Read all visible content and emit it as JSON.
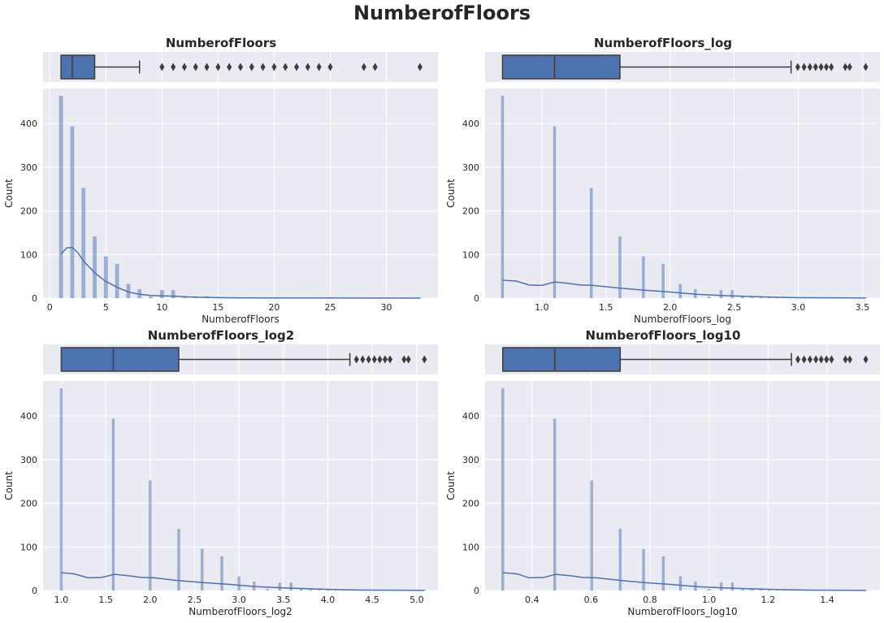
{
  "title": "NumberofFloors",
  "colors": {
    "background": "#eaeaf2",
    "grid": "#ffffff",
    "bar": "#4c72b0",
    "box_edge": "#3d3d3d",
    "text": "#262626"
  },
  "chart_data": [
    {
      "type": "histogram+boxplot",
      "title": "NumberofFloors",
      "xlabel": "NumberofFloors",
      "ylabel": "Count",
      "xlim": [
        -0.6,
        34.6
      ],
      "ylim": [
        0,
        480
      ],
      "xticks": [
        0,
        5,
        10,
        15,
        20,
        25,
        30
      ],
      "xtick_labels": [
        "0",
        "5",
        "10",
        "15",
        "20",
        "25",
        "30"
      ],
      "yticks": [
        0,
        100,
        200,
        300,
        400
      ],
      "bin_width": 0.32,
      "bars": [
        [
          1,
          463
        ],
        [
          2,
          393
        ],
        [
          3,
          252
        ],
        [
          4,
          141
        ],
        [
          5,
          95
        ],
        [
          6,
          78
        ],
        [
          7,
          32
        ],
        [
          8,
          20
        ],
        [
          9,
          3
        ],
        [
          10,
          18
        ],
        [
          11,
          18
        ],
        [
          12,
          4
        ],
        [
          13,
          3
        ],
        [
          14,
          4
        ],
        [
          15,
          2
        ],
        [
          16,
          1
        ],
        [
          17,
          1
        ],
        [
          18,
          1
        ],
        [
          19,
          1
        ],
        [
          20,
          1
        ],
        [
          21,
          1
        ],
        [
          22,
          1
        ],
        [
          23,
          1
        ],
        [
          24,
          1
        ],
        [
          25,
          1
        ],
        [
          28,
          1
        ],
        [
          29,
          1
        ],
        [
          33,
          1
        ]
      ],
      "kde": [
        [
          1,
          101
        ],
        [
          1.5,
          115
        ],
        [
          2,
          116
        ],
        [
          2.5,
          104
        ],
        [
          3,
          85
        ],
        [
          4,
          58
        ],
        [
          5,
          38
        ],
        [
          6,
          25
        ],
        [
          7,
          14
        ],
        [
          8,
          9
        ],
        [
          9,
          6
        ],
        [
          10,
          5
        ],
        [
          11,
          4.5
        ],
        [
          12,
          3
        ],
        [
          14,
          1.5
        ],
        [
          17,
          0.5
        ],
        [
          22,
          0.2
        ],
        [
          33,
          0
        ]
      ],
      "box": {
        "whisker_low": 1,
        "q1": 1,
        "median": 2,
        "q3": 4,
        "whisker_high": 8
      },
      "outliers": [
        10,
        11,
        12,
        13,
        14,
        15,
        16,
        17,
        18,
        19,
        20,
        21,
        22,
        23,
        24,
        25,
        28,
        29,
        33
      ]
    },
    {
      "type": "histogram+boxplot",
      "title": "NumberofFloors_log",
      "xlabel": "NumberofFloors_log",
      "ylabel": "Count",
      "xlim": [
        0.557,
        3.637
      ],
      "ylim": [
        0,
        480
      ],
      "xticks": [
        1.0,
        1.5,
        2.0,
        2.5,
        3.0,
        3.5
      ],
      "xtick_labels": [
        "1.0",
        "1.5",
        "2.0",
        "2.5",
        "3.0",
        "3.5"
      ],
      "yticks": [
        0,
        100,
        200,
        300,
        400
      ],
      "bin_width": 0.02,
      "bars": [
        [
          0.693,
          463
        ],
        [
          1.099,
          393
        ],
        [
          1.386,
          252
        ],
        [
          1.609,
          141
        ],
        [
          1.792,
          95
        ],
        [
          1.946,
          78
        ],
        [
          2.079,
          32
        ],
        [
          2.197,
          20
        ],
        [
          2.303,
          3
        ],
        [
          2.398,
          18
        ],
        [
          2.485,
          18
        ],
        [
          2.565,
          4
        ],
        [
          2.639,
          3
        ],
        [
          2.708,
          4
        ],
        [
          2.773,
          2
        ],
        [
          2.833,
          1
        ],
        [
          2.89,
          1
        ],
        [
          2.944,
          1
        ],
        [
          2.996,
          1
        ],
        [
          3.045,
          1
        ],
        [
          3.091,
          1
        ],
        [
          3.135,
          1
        ],
        [
          3.178,
          1
        ],
        [
          3.219,
          1
        ],
        [
          3.258,
          1
        ],
        [
          3.367,
          1
        ],
        [
          3.401,
          1
        ],
        [
          3.526,
          1
        ]
      ],
      "kde": [
        [
          0.693,
          41
        ],
        [
          0.8,
          39
        ],
        [
          0.9,
          30
        ],
        [
          1.0,
          29
        ],
        [
          1.1,
          37
        ],
        [
          1.2,
          34
        ],
        [
          1.3,
          30
        ],
        [
          1.4,
          29
        ],
        [
          1.6,
          23
        ],
        [
          1.8,
          18
        ],
        [
          2.0,
          14
        ],
        [
          2.2,
          9
        ],
        [
          2.4,
          6
        ],
        [
          2.6,
          4
        ],
        [
          2.8,
          2
        ],
        [
          3.0,
          1
        ],
        [
          3.2,
          0.8
        ],
        [
          3.526,
          0.2
        ]
      ],
      "box": {
        "whisker_low": 0.693,
        "q1": 0.693,
        "median": 1.099,
        "q3": 1.609,
        "whisker_high": 2.944
      },
      "outliers": [
        2.996,
        3.045,
        3.091,
        3.135,
        3.178,
        3.219,
        3.258,
        3.367,
        3.401,
        3.526
      ]
    },
    {
      "type": "histogram+boxplot",
      "title": "NumberofFloors_log2",
      "xlabel": "NumberofFloors_log2",
      "ylabel": "Count",
      "xlim": [
        0.795,
        5.239
      ],
      "ylim": [
        0,
        480
      ],
      "xticks": [
        1.0,
        1.5,
        2.0,
        2.5,
        3.0,
        3.5,
        4.0,
        4.5,
        5.0
      ],
      "xtick_labels": [
        "1.0",
        "1.5",
        "2.0",
        "2.5",
        "3.0",
        "3.5",
        "4.0",
        "4.5",
        "5.0"
      ],
      "yticks": [
        0,
        100,
        200,
        300,
        400
      ],
      "bin_width": 0.028,
      "bars": [
        [
          1.0,
          463
        ],
        [
          1.585,
          393
        ],
        [
          2.0,
          252
        ],
        [
          2.322,
          141
        ],
        [
          2.585,
          95
        ],
        [
          2.807,
          78
        ],
        [
          3.0,
          32
        ],
        [
          3.17,
          20
        ],
        [
          3.322,
          3
        ],
        [
          3.459,
          18
        ],
        [
          3.585,
          18
        ],
        [
          3.7,
          4
        ],
        [
          3.807,
          3
        ],
        [
          3.907,
          4
        ],
        [
          4.0,
          2
        ],
        [
          4.087,
          1
        ],
        [
          4.17,
          1
        ],
        [
          4.248,
          1
        ],
        [
          4.322,
          1
        ],
        [
          4.392,
          1
        ],
        [
          4.459,
          1
        ],
        [
          4.524,
          1
        ],
        [
          4.585,
          1
        ],
        [
          4.644,
          1
        ],
        [
          4.7,
          1
        ],
        [
          4.858,
          1
        ],
        [
          4.907,
          1
        ],
        [
          5.087,
          1
        ]
      ],
      "kde": [
        [
          1.0,
          41
        ],
        [
          1.15,
          38
        ],
        [
          1.3,
          29
        ],
        [
          1.45,
          30
        ],
        [
          1.6,
          37
        ],
        [
          1.75,
          34
        ],
        [
          1.9,
          30
        ],
        [
          2.05,
          29
        ],
        [
          2.3,
          23
        ],
        [
          2.6,
          18
        ],
        [
          2.9,
          14
        ],
        [
          3.2,
          9
        ],
        [
          3.5,
          6
        ],
        [
          3.8,
          4
        ],
        [
          4.1,
          2
        ],
        [
          4.4,
          1
        ],
        [
          4.7,
          0.8
        ],
        [
          5.087,
          0.2
        ]
      ],
      "box": {
        "whisker_low": 1.0,
        "q1": 1.0,
        "median": 1.585,
        "q3": 2.322,
        "whisker_high": 4.248
      },
      "outliers": [
        4.322,
        4.392,
        4.459,
        4.524,
        4.585,
        4.644,
        4.7,
        4.858,
        4.907,
        5.087
      ]
    },
    {
      "type": "histogram+boxplot",
      "title": "NumberofFloors_log10",
      "xlabel": "NumberofFloors_log10",
      "ylabel": "Count",
      "xlim": [
        0.241,
        1.579
      ],
      "ylim": [
        0,
        480
      ],
      "xticks": [
        0.4,
        0.6,
        0.8,
        1.0,
        1.2,
        1.4
      ],
      "xtick_labels": [
        "0.4",
        "0.6",
        "0.8",
        "1.0",
        "1.2",
        "1.4"
      ],
      "yticks": [
        0,
        100,
        200,
        300,
        400
      ],
      "bin_width": 0.0085,
      "bars": [
        [
          0.301,
          463
        ],
        [
          0.477,
          393
        ],
        [
          0.602,
          252
        ],
        [
          0.699,
          141
        ],
        [
          0.778,
          95
        ],
        [
          0.845,
          78
        ],
        [
          0.903,
          32
        ],
        [
          0.954,
          20
        ],
        [
          1.0,
          3
        ],
        [
          1.041,
          18
        ],
        [
          1.079,
          18
        ],
        [
          1.114,
          4
        ],
        [
          1.146,
          3
        ],
        [
          1.176,
          4
        ],
        [
          1.204,
          2
        ],
        [
          1.23,
          1
        ],
        [
          1.255,
          1
        ],
        [
          1.279,
          1
        ],
        [
          1.301,
          1
        ],
        [
          1.322,
          1
        ],
        [
          1.342,
          1
        ],
        [
          1.362,
          1
        ],
        [
          1.38,
          1
        ],
        [
          1.398,
          1
        ],
        [
          1.415,
          1
        ],
        [
          1.462,
          1
        ],
        [
          1.477,
          1
        ],
        [
          1.531,
          1
        ]
      ],
      "kde": [
        [
          0.301,
          41
        ],
        [
          0.35,
          38
        ],
        [
          0.39,
          29
        ],
        [
          0.44,
          30
        ],
        [
          0.48,
          37
        ],
        [
          0.53,
          34
        ],
        [
          0.57,
          30
        ],
        [
          0.62,
          29
        ],
        [
          0.7,
          23
        ],
        [
          0.78,
          18
        ],
        [
          0.87,
          14
        ],
        [
          0.96,
          9
        ],
        [
          1.05,
          6
        ],
        [
          1.14,
          4
        ],
        [
          1.24,
          2
        ],
        [
          1.33,
          1
        ],
        [
          1.41,
          0.8
        ],
        [
          1.531,
          0.2
        ]
      ],
      "box": {
        "whisker_low": 0.301,
        "q1": 0.301,
        "median": 0.477,
        "q3": 0.699,
        "whisker_high": 1.279
      },
      "outliers": [
        1.301,
        1.322,
        1.342,
        1.362,
        1.38,
        1.398,
        1.415,
        1.462,
        1.477,
        1.531
      ]
    }
  ]
}
